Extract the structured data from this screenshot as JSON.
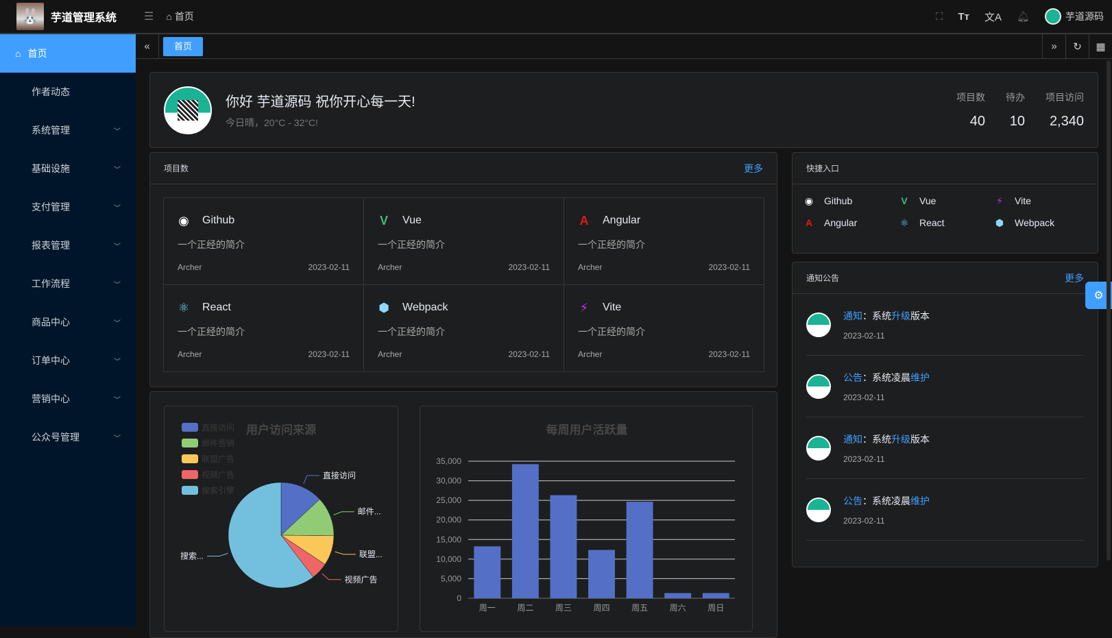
{
  "header": {
    "app_title": "芋道管理系统",
    "breadcrumb": "首页",
    "user_name": "芋道源码"
  },
  "sidebar": {
    "items": [
      {
        "label": "首页",
        "active": true
      },
      {
        "label": "作者动态"
      },
      {
        "label": "系统管理",
        "has_children": true
      },
      {
        "label": "基础设施",
        "has_children": true
      },
      {
        "label": "支付管理",
        "has_children": true
      },
      {
        "label": "报表管理",
        "has_children": true
      },
      {
        "label": "工作流程",
        "has_children": true
      },
      {
        "label": "商品中心",
        "has_children": true
      },
      {
        "label": "订单中心",
        "has_children": true
      },
      {
        "label": "营销中心",
        "has_children": true
      },
      {
        "label": "公众号管理",
        "has_children": true
      }
    ]
  },
  "tabs": [
    {
      "label": "首页",
      "active": true
    }
  ],
  "welcome": {
    "greeting": "你好 芋道源码 祝你开心每一天!",
    "weather": "今日晴，20°C - 32°C!",
    "stats": [
      {
        "label": "项目数",
        "value": "40"
      },
      {
        "label": "待办",
        "value": "10"
      },
      {
        "label": "项目访问",
        "value": "2,340"
      }
    ]
  },
  "projects": {
    "title": "项目数",
    "more": "更多",
    "items": [
      {
        "name": "Github",
        "icon": "github-icon",
        "color": "#ffffff",
        "desc": "一个正经的简介",
        "author": "Archer",
        "date": "2023-02-11"
      },
      {
        "name": "Vue",
        "icon": "vue-icon",
        "color": "#42b883",
        "desc": "一个正经的简介",
        "author": "Archer",
        "date": "2023-02-11"
      },
      {
        "name": "Angular",
        "icon": "angular-icon",
        "color": "#dd1b16",
        "desc": "一个正经的简介",
        "author": "Archer",
        "date": "2023-02-11"
      },
      {
        "name": "React",
        "icon": "react-icon",
        "color": "#61dafb",
        "desc": "一个正经的简介",
        "author": "Archer",
        "date": "2023-02-11"
      },
      {
        "name": "Webpack",
        "icon": "webpack-icon",
        "color": "#8ed6fb",
        "desc": "一个正经的简介",
        "author": "Archer",
        "date": "2023-02-11"
      },
      {
        "name": "Vite",
        "icon": "vite-icon",
        "color": "#bd34fe",
        "desc": "一个正经的简介",
        "author": "Archer",
        "date": "2023-02-11"
      }
    ]
  },
  "quick": {
    "title": "快捷入口",
    "items": [
      {
        "name": "Github",
        "icon": "github-icon",
        "color": "#ffffff"
      },
      {
        "name": "Vue",
        "icon": "vue-icon",
        "color": "#42b883"
      },
      {
        "name": "Vite",
        "icon": "vite-icon",
        "color": "#bd34fe"
      },
      {
        "name": "Angular",
        "icon": "angular-icon",
        "color": "#dd1b16"
      },
      {
        "name": "React",
        "icon": "react-icon",
        "color": "#61dafb"
      },
      {
        "name": "Webpack",
        "icon": "webpack-icon",
        "color": "#8ed6fb"
      }
    ]
  },
  "notice": {
    "title": "通知公告",
    "more": "更多",
    "items": [
      {
        "type": "通知",
        "sep": "：",
        "p1": "系统",
        "hl": "升级",
        "p2": "版本",
        "date": "2023-02-11"
      },
      {
        "type": "公告",
        "sep": "：",
        "p1": "系统凌晨",
        "hl": "维护",
        "p2": "",
        "date": "2023-02-11"
      },
      {
        "type": "通知",
        "sep": "：",
        "p1": "系统",
        "hl": "升级",
        "p2": "版本",
        "date": "2023-02-11"
      },
      {
        "type": "公告",
        "sep": "：",
        "p1": "系统凌晨",
        "hl": "维护",
        "p2": "",
        "date": "2023-02-11"
      }
    ]
  },
  "colors": {
    "accent": "#409eff",
    "sidebar_bg": "#001529",
    "bar": "#5470c6"
  },
  "chart_data": [
    {
      "type": "pie",
      "title": "用户访问来源",
      "legend_position": "top-left",
      "categories": [
        "直接访问",
        "邮件营销",
        "联盟广告",
        "视频广告",
        "搜索引擎"
      ],
      "slice_labels": [
        "直接访问",
        "邮件...",
        "联盟...",
        "视频广告",
        "搜索..."
      ],
      "values": [
        335,
        310,
        234,
        135,
        1548
      ],
      "colors": [
        "#5470c6",
        "#91cc75",
        "#fac858",
        "#ee6666",
        "#73c0de"
      ]
    },
    {
      "type": "bar",
      "title": "每周用户活跃量",
      "categories": [
        "周一",
        "周二",
        "周三",
        "周四",
        "周五",
        "周六",
        "周日"
      ],
      "values": [
        13253,
        34235,
        26321,
        12340,
        24643,
        1322,
        1324
      ],
      "ylim": [
        0,
        35000
      ],
      "yticks": [
        "0",
        "5,000",
        "10,000",
        "15,000",
        "20,000",
        "25,000",
        "30,000",
        "35,000"
      ],
      "grid": true
    }
  ]
}
